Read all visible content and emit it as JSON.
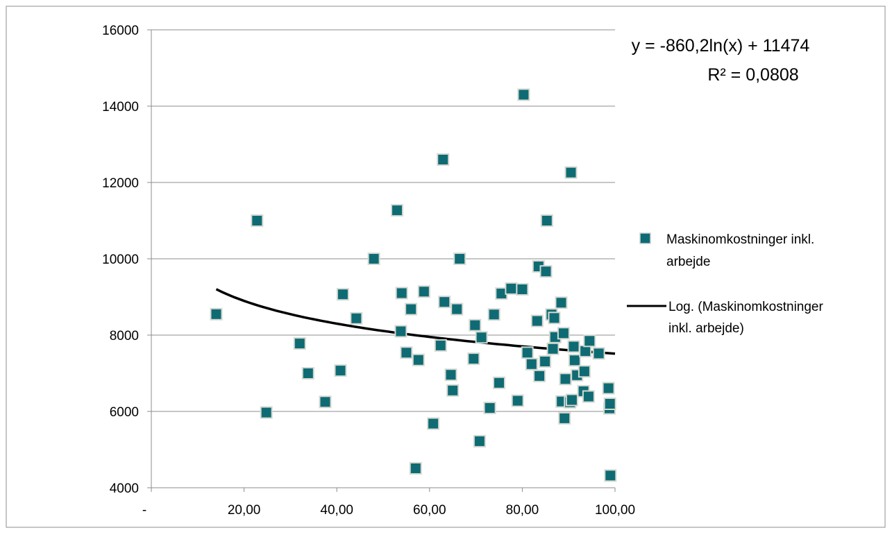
{
  "chart_data": {
    "type": "scatter",
    "x_ticks": [
      "-",
      "20,00",
      "40,00",
      "60,00",
      "80,00",
      "100,00"
    ],
    "y_ticks": [
      "4000",
      "6000",
      "8000",
      "10000",
      "12000",
      "14000",
      "16000"
    ],
    "xlim": [
      0,
      100
    ],
    "ylim": [
      4000,
      16000
    ],
    "grid": "horizontal",
    "legend_position": "right",
    "series": [
      {
        "name": "Maskinomkostninger inkl. arbejde",
        "color": "#0f6b73",
        "points": [
          [
            14,
            8550
          ],
          [
            22.8,
            11000
          ],
          [
            24.8,
            5970
          ],
          [
            32,
            7780
          ],
          [
            33.8,
            7000
          ],
          [
            37.5,
            6250
          ],
          [
            40.8,
            7070
          ],
          [
            41.3,
            9070
          ],
          [
            44.2,
            8440
          ],
          [
            48,
            10000
          ],
          [
            53,
            11270
          ],
          [
            53.8,
            8100
          ],
          [
            54,
            9100
          ],
          [
            55,
            7540
          ],
          [
            56,
            8680
          ],
          [
            57,
            4510
          ],
          [
            57.6,
            7350
          ],
          [
            58.8,
            9140
          ],
          [
            60.8,
            5680
          ],
          [
            62.4,
            7730
          ],
          [
            62.9,
            12600
          ],
          [
            63.2,
            8870
          ],
          [
            64.6,
            6960
          ],
          [
            65,
            6550
          ],
          [
            65.9,
            8680
          ],
          [
            66.5,
            10000
          ],
          [
            69.5,
            7380
          ],
          [
            69.8,
            8260
          ],
          [
            70.8,
            5220
          ],
          [
            71.2,
            7940
          ],
          [
            73,
            6090
          ],
          [
            73.9,
            8540
          ],
          [
            75,
            6750
          ],
          [
            75.5,
            9090
          ],
          [
            77.6,
            9220
          ],
          [
            79,
            6280
          ],
          [
            80,
            9200
          ],
          [
            80.3,
            14300
          ],
          [
            81.1,
            7540
          ],
          [
            82,
            7240
          ],
          [
            83.2,
            8370
          ],
          [
            83.5,
            9800
          ],
          [
            83.7,
            6930
          ],
          [
            84.9,
            7310
          ],
          [
            85.1,
            9670
          ],
          [
            85.3,
            11000
          ],
          [
            86.3,
            8540
          ],
          [
            86.6,
            7640
          ],
          [
            86.9,
            8450
          ],
          [
            87.1,
            7950
          ],
          [
            88.4,
            8850
          ],
          [
            88.5,
            6260
          ],
          [
            88.9,
            8050
          ],
          [
            89.1,
            5820
          ],
          [
            89.3,
            6850
          ],
          [
            90.3,
            6240
          ],
          [
            90.5,
            12260
          ],
          [
            90.7,
            6300
          ],
          [
            91.1,
            7700
          ],
          [
            91.3,
            7340
          ],
          [
            91.8,
            6950
          ],
          [
            93.2,
            6530
          ],
          [
            93.4,
            7050
          ],
          [
            93.6,
            7580
          ],
          [
            94.3,
            6390
          ],
          [
            94.5,
            7850
          ],
          [
            96.5,
            7520
          ],
          [
            98.6,
            6610
          ],
          [
            98.8,
            6080
          ],
          [
            98.9,
            6200
          ],
          [
            99,
            4320
          ]
        ]
      },
      {
        "name": "Log. (Maskinomkostninger inkl. arbejde)",
        "color": "#000000",
        "type": "trendline-log",
        "a": -860.2,
        "b": 11474,
        "x_range": [
          14,
          100
        ]
      }
    ],
    "equation": "y = -860,2ln(x) + 11474",
    "r_squared": "R² = 0,0808"
  }
}
